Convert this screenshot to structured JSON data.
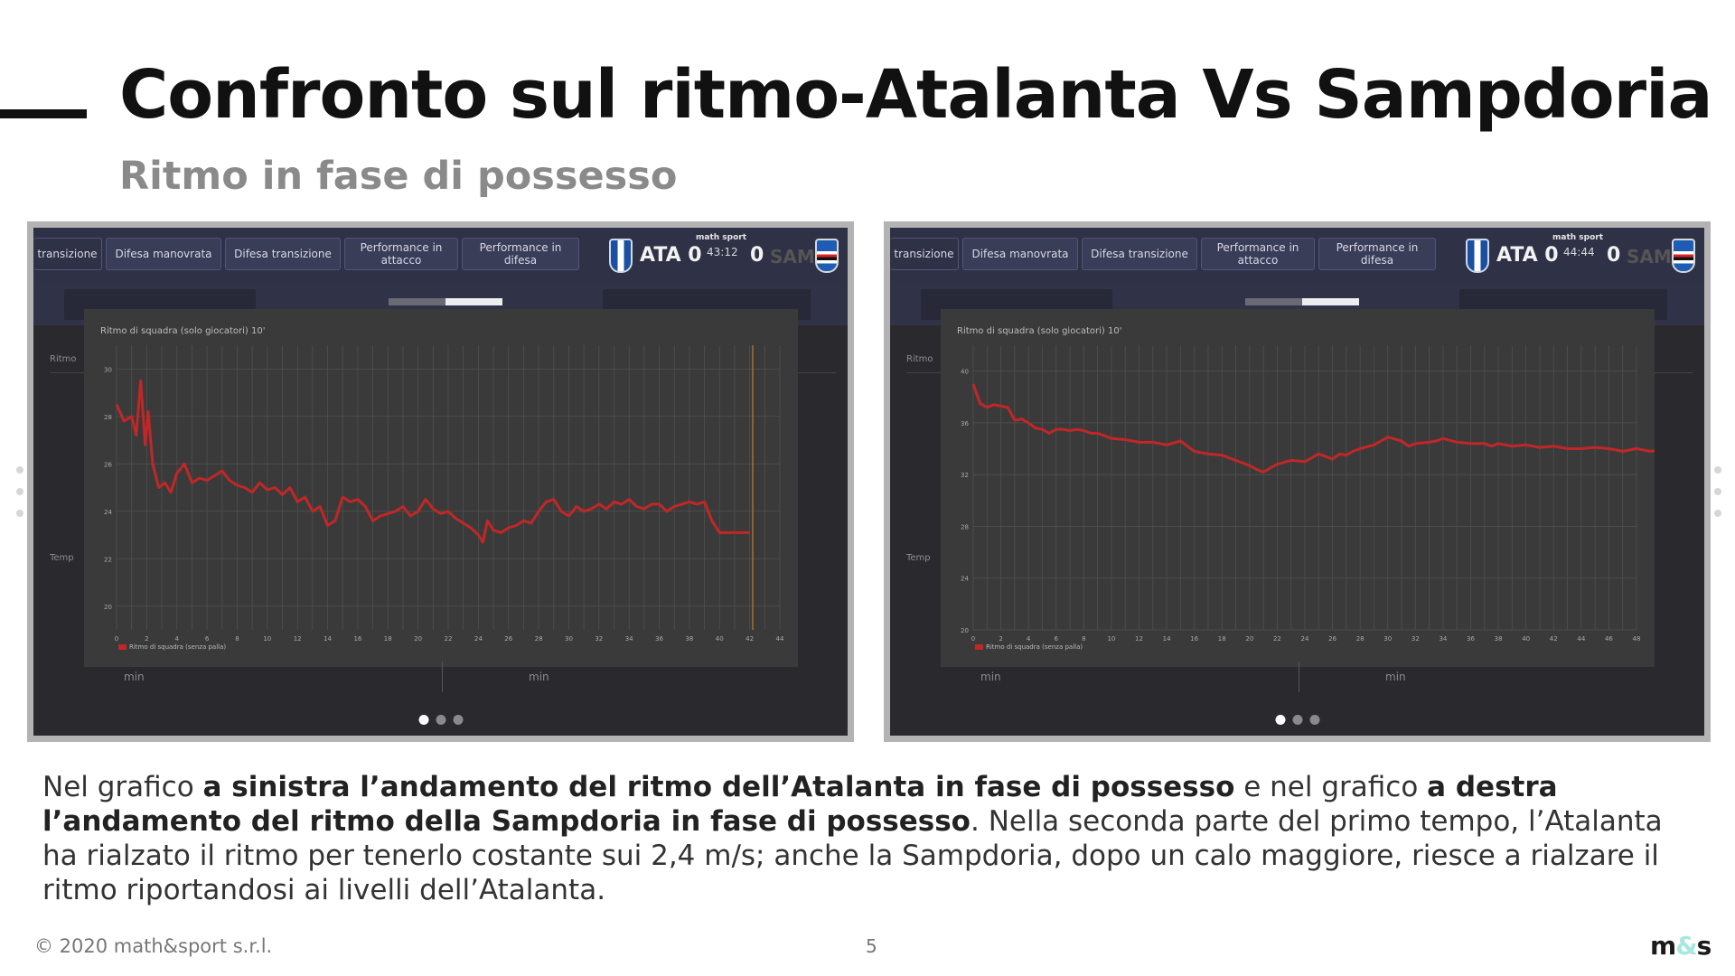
{
  "slide": {
    "title": "Confronto sul ritmo-Atalanta Vs Sampdoria",
    "subtitle": "Ritmo in fase di possesso",
    "paragraph": [
      {
        "text": "Nel grafico ",
        "bold": false
      },
      {
        "text": "a sinistra l’andamento del ritmo dell’Atalanta in fase di possesso",
        "bold": true
      },
      {
        "text": " e nel grafico ",
        "bold": false
      },
      {
        "text": "a destra l’andamento del ritmo della Sampdoria in fase di possesso",
        "bold": true
      },
      {
        "text": ". Nella seconda parte del primo tempo, l’Atalanta ha rialzato il ritmo per tenerlo costante sui 2,4 m/s; anche la Sampdoria, dopo un calo maggiore, riesce a rialzare il ritmo riportandosi ai livelli dell’Atalanta.",
        "bold": false
      }
    ],
    "footer": {
      "copyright": "© 2020 math&sport s.r.l.",
      "page": "5",
      "logo_left": "m",
      "logo_mid": "&",
      "logo_right": "s"
    }
  },
  "screens": [
    {
      "tabs": [
        "transizione",
        "Difesa manovrata",
        "Difesa transizione",
        "Performance in attacco",
        "Performance in difesa"
      ],
      "scoreboard": {
        "brand": "math sport",
        "home": "ATA 0",
        "clock": "43:12",
        "away_score": "0",
        "away_team": "SAM"
      },
      "bg_labels": [
        "Ritmo",
        "Temp"
      ],
      "min_labels": [
        "min",
        "min"
      ],
      "chart_title": "Ritmo di squadra (solo giocatori) 10'",
      "legend": "Ritmo di squadra (senza palla)",
      "pager": {
        "count": 3,
        "active": 0
      }
    },
    {
      "tabs": [
        "transizione",
        "Difesa manovrata",
        "Difesa transizione",
        "Performance in attacco",
        "Performance in difesa"
      ],
      "scoreboard": {
        "brand": "math sport",
        "home": "ATA 0",
        "clock": "44:44",
        "away_score": "0",
        "away_team": "SAM"
      },
      "bg_labels": [
        "Ritmo",
        "Temp"
      ],
      "min_labels": [
        "min",
        "min"
      ],
      "chart_title": "Ritmo di squadra (solo giocatori) 10'",
      "legend": "Ritmo di squadra (senza palla)",
      "pager": {
        "count": 3,
        "active": 0
      }
    }
  ],
  "colors": {
    "series": "#c12727",
    "marker_line": "#c8792a",
    "chart_bg": "#3a3a3a",
    "panel_bg": "#2a2a2e",
    "grid": "#505050"
  },
  "chart_data": [
    {
      "type": "line",
      "title": "Ritmo di squadra (solo giocatori) 10'",
      "xlabel": "",
      "ylabel": "",
      "x_ticks": [
        0,
        2,
        4,
        6,
        8,
        10,
        12,
        14,
        16,
        18,
        20,
        22,
        24,
        26,
        28,
        30,
        32,
        34,
        36,
        38,
        40,
        42,
        44
      ],
      "y_ticks": [
        2.0,
        2.2,
        2.4,
        2.6,
        2.8,
        3.0
      ],
      "xlim": [
        0,
        44
      ],
      "ylim": [
        1.9,
        3.1
      ],
      "grid": true,
      "legend": "bottom-left",
      "marker_x": 42.2,
      "series": [
        {
          "name": "Ritmo di squadra (senza palla)",
          "x": [
            0,
            0.5,
            1.0,
            1.3,
            1.6,
            1.9,
            2.1,
            2.4,
            2.8,
            3.2,
            3.6,
            4.0,
            4.5,
            5.0,
            5.5,
            6.0,
            6.5,
            7.0,
            7.5,
            8.0,
            8.5,
            9.0,
            9.5,
            10.0,
            10.5,
            11.0,
            11.5,
            12.0,
            12.5,
            13.0,
            13.5,
            14.0,
            14.5,
            15.0,
            15.5,
            16.0,
            16.5,
            17.0,
            17.5,
            18.0,
            18.5,
            19.0,
            19.5,
            20.0,
            20.5,
            21.0,
            21.5,
            22.0,
            22.5,
            23.0,
            23.5,
            24.0,
            24.3,
            24.6,
            25.0,
            25.5,
            26.0,
            26.5,
            27.0,
            27.5,
            28.0,
            28.5,
            29.0,
            29.5,
            30.0,
            30.5,
            31.0,
            31.5,
            32.0,
            32.5,
            33.0,
            33.5,
            34.0,
            34.5,
            35.0,
            35.5,
            36.0,
            36.5,
            37.0,
            37.5,
            38.0,
            38.5,
            39.0,
            39.5,
            40.0,
            40.5,
            41.0,
            41.5,
            42.0
          ],
          "values": [
            2.85,
            2.78,
            2.8,
            2.72,
            2.95,
            2.68,
            2.82,
            2.6,
            2.5,
            2.52,
            2.48,
            2.56,
            2.6,
            2.52,
            2.54,
            2.53,
            2.55,
            2.57,
            2.53,
            2.51,
            2.5,
            2.48,
            2.52,
            2.49,
            2.5,
            2.47,
            2.5,
            2.44,
            2.46,
            2.4,
            2.42,
            2.34,
            2.36,
            2.46,
            2.44,
            2.45,
            2.42,
            2.36,
            2.38,
            2.39,
            2.4,
            2.42,
            2.38,
            2.4,
            2.45,
            2.41,
            2.39,
            2.4,
            2.37,
            2.35,
            2.33,
            2.3,
            2.27,
            2.36,
            2.32,
            2.31,
            2.33,
            2.34,
            2.36,
            2.35,
            2.4,
            2.44,
            2.45,
            2.4,
            2.38,
            2.42,
            2.4,
            2.41,
            2.43,
            2.41,
            2.44,
            2.43,
            2.45,
            2.42,
            2.41,
            2.43,
            2.43,
            2.4,
            2.42,
            2.43,
            2.44,
            2.43,
            2.44,
            2.36,
            2.31,
            2.31,
            2.31,
            2.31,
            2.31
          ]
        }
      ]
    },
    {
      "type": "line",
      "title": "Ritmo di squadra (solo giocatori) 10'",
      "xlabel": "",
      "ylabel": "",
      "x_ticks": [
        0,
        2,
        4,
        6,
        8,
        10,
        12,
        14,
        16,
        18,
        20,
        22,
        24,
        26,
        28,
        30,
        32,
        34,
        36,
        38,
        40,
        42,
        44,
        46,
        48
      ],
      "y_ticks": [
        2.0,
        2.4,
        2.8,
        3.2,
        3.6,
        4.0
      ],
      "xlim": [
        0,
        48
      ],
      "ylim": [
        2.0,
        4.2
      ],
      "grid": true,
      "legend": "bottom-left",
      "series": [
        {
          "name": "Ritmo di squadra (senza palla)",
          "x": [
            0,
            0.5,
            1.0,
            1.5,
            2.0,
            2.5,
            3.0,
            3.5,
            4.0,
            4.5,
            5.0,
            5.5,
            6.0,
            6.5,
            7.0,
            7.5,
            8.0,
            8.5,
            9.0,
            9.5,
            10.0,
            11.0,
            12.0,
            13.0,
            14.0,
            15.0,
            16.0,
            17.0,
            18.0,
            19.0,
            20.0,
            20.5,
            21.0,
            22.0,
            23.0,
            24.0,
            25.0,
            26.0,
            26.5,
            27.0,
            27.5,
            28.0,
            29.0,
            30.0,
            31.0,
            31.5,
            32.0,
            33.0,
            33.5,
            34.0,
            35.0,
            36.0,
            37.0,
            37.5,
            38.0,
            39.0,
            40.0,
            41.0,
            42.0,
            43.0,
            44.0,
            45.0,
            46.0,
            47.0,
            48.0,
            49.0,
            50.0
          ],
          "values": [
            3.9,
            3.75,
            3.72,
            3.74,
            3.73,
            3.72,
            3.62,
            3.63,
            3.6,
            3.56,
            3.55,
            3.52,
            3.55,
            3.55,
            3.54,
            3.55,
            3.54,
            3.52,
            3.52,
            3.5,
            3.48,
            3.47,
            3.45,
            3.45,
            3.43,
            3.46,
            3.38,
            3.36,
            3.35,
            3.31,
            3.27,
            3.24,
            3.22,
            3.28,
            3.31,
            3.3,
            3.36,
            3.32,
            3.36,
            3.35,
            3.38,
            3.4,
            3.43,
            3.49,
            3.46,
            3.42,
            3.44,
            3.45,
            3.46,
            3.48,
            3.45,
            3.44,
            3.44,
            3.42,
            3.44,
            3.42,
            3.43,
            3.41,
            3.42,
            3.4,
            3.4,
            3.41,
            3.4,
            3.38,
            3.4,
            3.38,
            3.39
          ]
        }
      ]
    }
  ]
}
